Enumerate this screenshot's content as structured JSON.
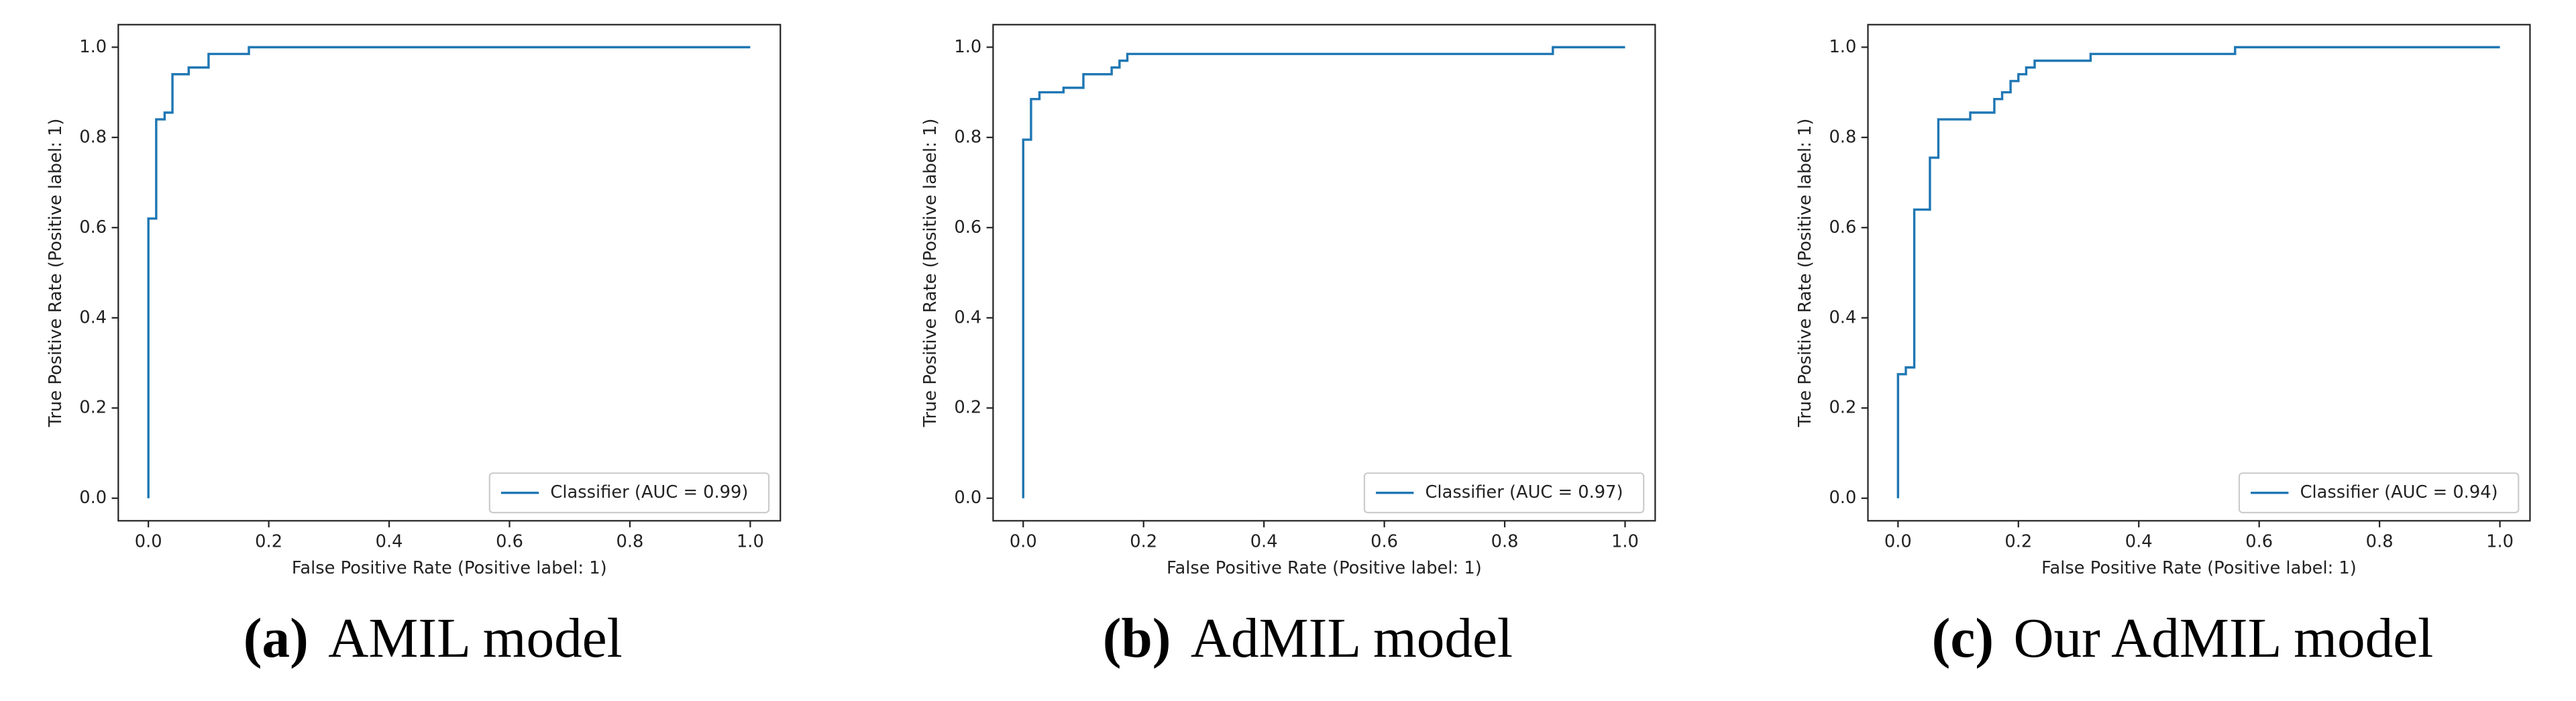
{
  "chart_data": [
    {
      "type": "line",
      "caption_label": "(a)",
      "caption": "AMIL model",
      "xlabel": "False Positive Rate (Positive label: 1)",
      "ylabel": "True Positive Rate (Positive label: 1)",
      "x": [
        0,
        0,
        0.013,
        0.013,
        0.027,
        0.027,
        0.04,
        0.04,
        0.067,
        0.067,
        0.1,
        0.1,
        0.167,
        0.167,
        1
      ],
      "series": [
        {
          "name": "Classifier (AUC = 0.99)",
          "color": "#1f77b4",
          "values": [
            0,
            0.62,
            0.62,
            0.84,
            0.84,
            0.855,
            0.855,
            0.94,
            0.94,
            0.955,
            0.955,
            0.985,
            0.985,
            1,
            1
          ]
        }
      ],
      "xlim": [
        -0.05,
        1.05
      ],
      "ylim": [
        -0.05,
        1.05
      ],
      "xticks": [
        {
          "value": 0,
          "label": "0.0"
        },
        0.2,
        0.4,
        0.6,
        0.8,
        {
          "value": 1,
          "label": "1.0"
        }
      ],
      "yticks": [
        {
          "value": 0,
          "label": "0.0"
        },
        0.2,
        0.4,
        0.6,
        0.8,
        {
          "value": 1,
          "label": "1.0"
        }
      ],
      "legend": "lower right"
    },
    {
      "type": "line",
      "caption_label": "(b)",
      "caption": "AdMIL model",
      "xlabel": "False Positive Rate (Positive label: 1)",
      "ylabel": "True Positive Rate (Positive label: 1)",
      "x": [
        0,
        0,
        0.013,
        0.013,
        0.027,
        0.027,
        0.067,
        0.067,
        0.1,
        0.1,
        0.147,
        0.147,
        0.16,
        0.16,
        0.173,
        0.173,
        0.88,
        0.88,
        1
      ],
      "series": [
        {
          "name": "Classifier (AUC = 0.97)",
          "color": "#1f77b4",
          "values": [
            0,
            0.795,
            0.795,
            0.885,
            0.885,
            0.9,
            0.9,
            0.91,
            0.91,
            0.94,
            0.94,
            0.955,
            0.955,
            0.97,
            0.97,
            0.985,
            0.985,
            1,
            1
          ]
        }
      ],
      "xlim": [
        -0.05,
        1.05
      ],
      "ylim": [
        -0.05,
        1.05
      ],
      "xticks": [
        {
          "value": 0,
          "label": "0.0"
        },
        0.2,
        0.4,
        0.6,
        0.8,
        {
          "value": 1,
          "label": "1.0"
        }
      ],
      "yticks": [
        {
          "value": 0,
          "label": "0.0"
        },
        0.2,
        0.4,
        0.6,
        0.8,
        {
          "value": 1,
          "label": "1.0"
        }
      ],
      "legend": "lower right"
    },
    {
      "type": "line",
      "caption_label": "(c)",
      "caption": "Our AdMIL model",
      "xlabel": "False Positive Rate (Positive label: 1)",
      "ylabel": "True Positive Rate (Positive label: 1)",
      "x": [
        0,
        0,
        0.013,
        0.013,
        0.027,
        0.027,
        0.053,
        0.053,
        0.067,
        0.067,
        0.12,
        0.12,
        0.16,
        0.16,
        0.173,
        0.173,
        0.187,
        0.187,
        0.2,
        0.2,
        0.213,
        0.213,
        0.227,
        0.227,
        0.32,
        0.32,
        0.56,
        0.56,
        1
      ],
      "series": [
        {
          "name": "Classifier (AUC = 0.94)",
          "color": "#1f77b4",
          "values": [
            0,
            0.275,
            0.275,
            0.29,
            0.29,
            0.64,
            0.64,
            0.755,
            0.755,
            0.84,
            0.84,
            0.855,
            0.855,
            0.885,
            0.885,
            0.9,
            0.9,
            0.925,
            0.925,
            0.94,
            0.94,
            0.955,
            0.955,
            0.97,
            0.97,
            0.985,
            0.985,
            1,
            1
          ]
        }
      ],
      "xlim": [
        -0.05,
        1.05
      ],
      "ylim": [
        -0.05,
        1.05
      ],
      "xticks": [
        {
          "value": 0,
          "label": "0.0"
        },
        0.2,
        0.4,
        0.6,
        0.8,
        {
          "value": 1,
          "label": "1.0"
        }
      ],
      "yticks": [
        {
          "value": 0,
          "label": "0.0"
        },
        0.2,
        0.4,
        0.6,
        0.8,
        {
          "value": 1,
          "label": "1.0"
        }
      ],
      "legend": "lower right"
    }
  ]
}
